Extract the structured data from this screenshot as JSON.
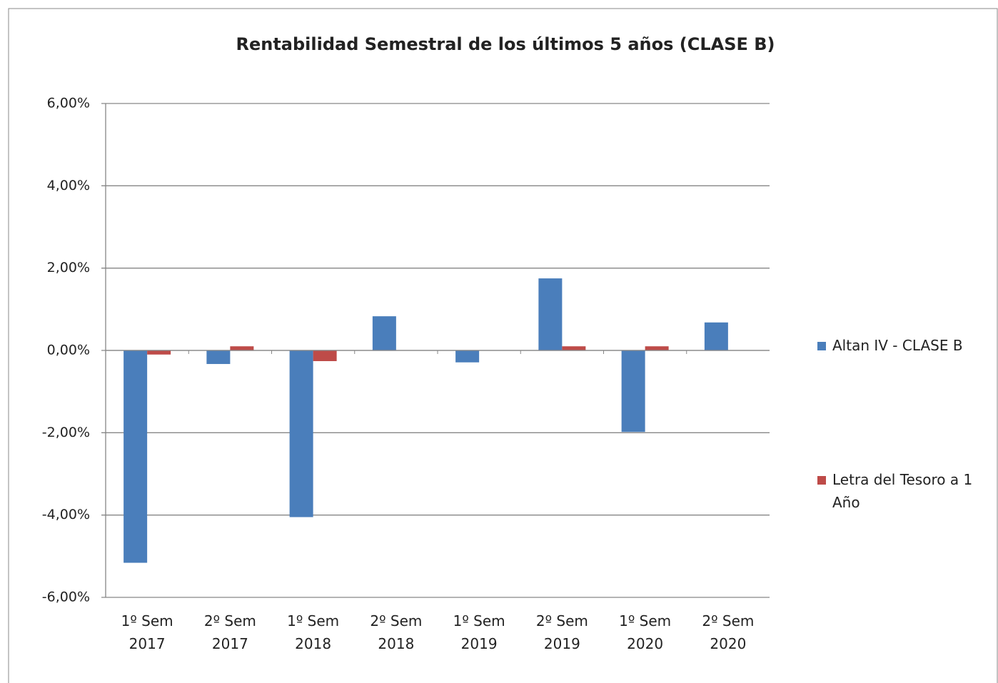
{
  "chart_data": {
    "type": "bar",
    "title": "Rentabilidad Semestral de los últimos 5 años (CLASE B)",
    "categories": [
      "1º Sem 2017",
      "2º Sem 2017",
      "1º Sem 2018",
      "2º Sem 2018",
      "1º Sem 2019",
      "2º Sem 2019",
      "1º Sem 2020",
      "2º Sem 2020"
    ],
    "series": [
      {
        "name": "Altan IV - CLASE B",
        "color": "#4a7ebb",
        "values": [
          -5.16,
          -0.33,
          -4.05,
          0.83,
          -0.29,
          1.75,
          -1.98,
          0.68
        ]
      },
      {
        "name": "Letra del Tesoro a 1 Año",
        "color": "#be4b48",
        "values": [
          -0.1,
          0.1,
          -0.26,
          0,
          0,
          0.1,
          0.1,
          0
        ]
      }
    ],
    "ylim": [
      -6,
      6
    ],
    "yticks": [
      {
        "value": 6,
        "label": "6,00%"
      },
      {
        "value": 4,
        "label": "4,00%"
      },
      {
        "value": 2,
        "label": "2,00%"
      },
      {
        "value": 0,
        "label": "0,00%"
      },
      {
        "value": -2,
        "label": "-2,00%"
      },
      {
        "value": -4,
        "label": "-4,00%"
      },
      {
        "value": -6,
        "label": "-6,00%"
      }
    ],
    "grid": true,
    "legend": "right"
  }
}
